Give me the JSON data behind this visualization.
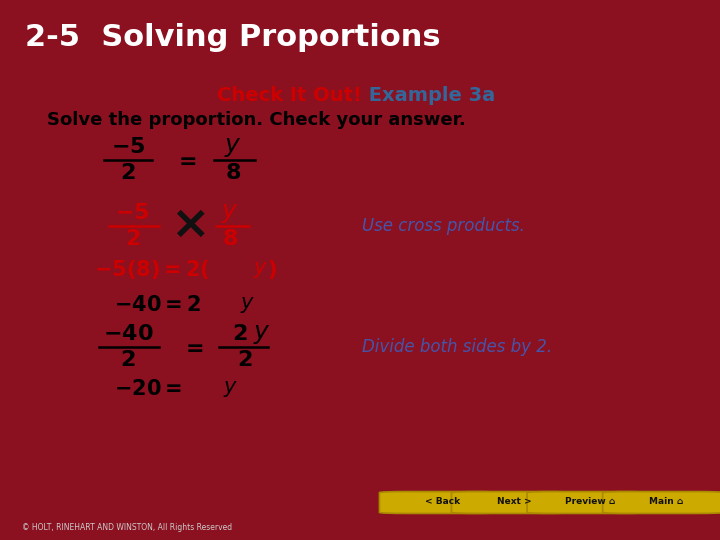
{
  "title": "2-5  Solving Proportions",
  "title_bg": "#6B0E18",
  "title_color": "#FFFFFF",
  "header_check": "Check It Out!",
  "header_check_color": "#CC0000",
  "header_example": " Example 3a",
  "header_example_color": "#336699",
  "body_bg": "#FFFFFF",
  "main_bg": "#8B1020",
  "line1": "Solve the proportion. Check your answer.",
  "line1_color": "#000000",
  "cross_color": "#CC0000",
  "annotation1": "Use cross products.",
  "annotation1_color": "#4455AA",
  "annotation2": "Divide both sides by 2.",
  "annotation2_color": "#4455AA",
  "step3_color": "#CC0000",
  "step4_color": "#000000",
  "footer_text": "© HOLT, RINEHART AND WINSTON, All Rights Reserved",
  "footer_color": "#CCCCCC",
  "footer_bg": "#111111",
  "btn_color": "#CCAA00",
  "btn_border": "#AA8800"
}
